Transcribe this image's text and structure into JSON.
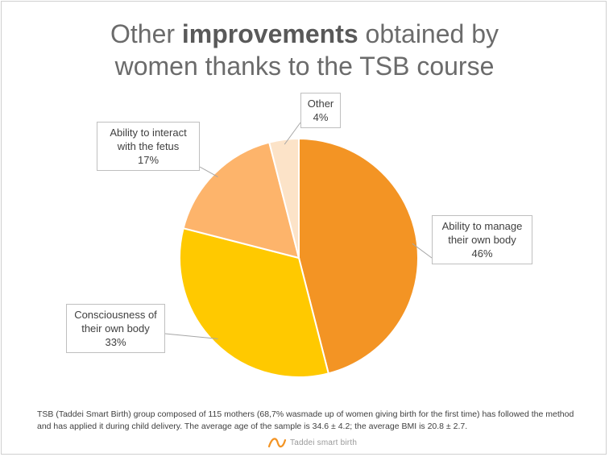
{
  "title": {
    "line1_pre": "Other ",
    "line1_bold": "improvements",
    "line1_post": " obtained by",
    "line2": "women thanks to the TSB course"
  },
  "chart_data": {
    "type": "pie",
    "slices": [
      {
        "label_lines": [
          "Ability to manage",
          "their own body"
        ],
        "value": 46,
        "pct_label": "46%",
        "color": "#F39424"
      },
      {
        "label_lines": [
          "Consciousness of",
          "their own body"
        ],
        "value": 33,
        "pct_label": "33%",
        "color": "#FFC900"
      },
      {
        "label_lines": [
          "Ability to interact",
          "with the fetus"
        ],
        "value": 17,
        "pct_label": "17%",
        "color": "#FDB46B"
      },
      {
        "label_lines": [
          "Other"
        ],
        "value": 4,
        "pct_label": "4%",
        "color": "#FCE3C8"
      }
    ]
  },
  "footnote": "TSB (Taddei Smart Birth) group composed of 115 mothers (68,7% wasmade up of women giving birth for the first time) has followed the method and has applied it during child delivery. The average age of the sample is 34.6 ± 4.2; the average BMI is 20.8 ± 2.7.",
  "logo": {
    "text": "Taddei smart birth",
    "color": "#F39424"
  }
}
